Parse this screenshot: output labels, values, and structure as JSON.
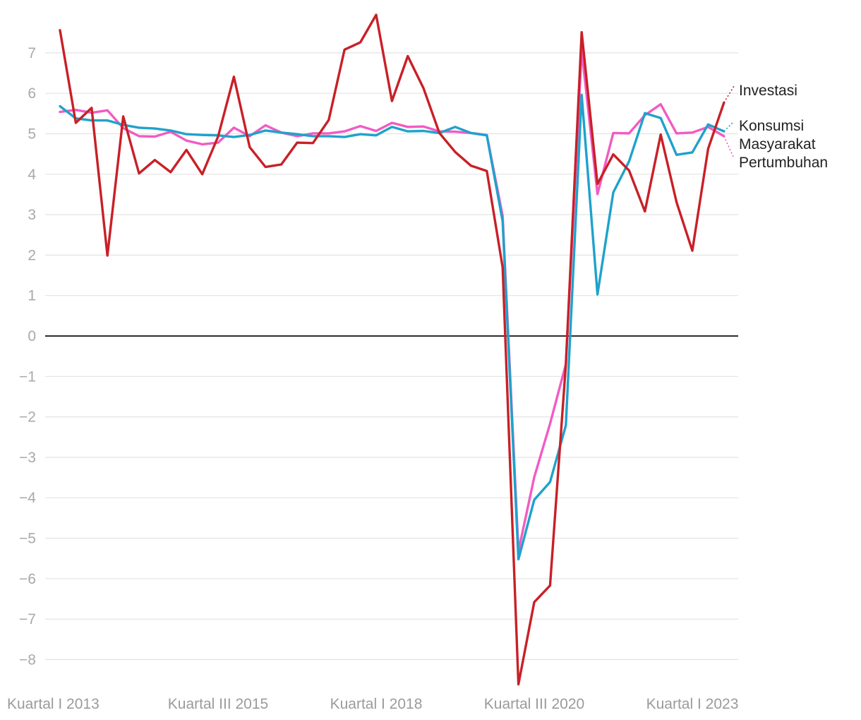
{
  "chart_data": {
    "type": "line",
    "title": "",
    "xlabel": "",
    "ylabel": "",
    "ylim": [
      -8.6,
      7.9
    ],
    "yticks": [
      -8,
      -7,
      -6,
      -5,
      -4,
      -3,
      -2,
      -1,
      0,
      1,
      2,
      3,
      4,
      5,
      6,
      7
    ],
    "ytick_labels": [
      "−8",
      "−7",
      "−6",
      "−5",
      "−4",
      "−3",
      "−2",
      "−1",
      "0",
      "1",
      "2",
      "3",
      "4",
      "5",
      "6",
      "7"
    ],
    "grid": true,
    "x_start_quarter": "Kuartal I 2013",
    "x_ticks": [
      {
        "index": 0,
        "label": "Kuartal I 2013"
      },
      {
        "index": 10,
        "label": "Kuartal III 2015"
      },
      {
        "index": 20,
        "label": "Kuartal I 2018"
      },
      {
        "index": 30,
        "label": "Kuartal III 2020"
      },
      {
        "index": 40,
        "label": "Kuartal I 2023"
      }
    ],
    "series": [
      {
        "name": "Pertumbuhan",
        "color": "#f25bc4",
        "label_lines": [
          "Pertumbuhan"
        ],
        "values": [
          5.54,
          5.59,
          5.52,
          5.58,
          5.14,
          4.94,
          4.93,
          5.05,
          4.83,
          4.74,
          4.78,
          5.15,
          4.94,
          5.21,
          5.03,
          4.94,
          5.01,
          5.01,
          5.06,
          5.19,
          5.07,
          5.27,
          5.17,
          5.18,
          5.06,
          5.05,
          5.02,
          4.97,
          2.97,
          -5.32,
          -3.49,
          -2.17,
          -0.7,
          7.07,
          3.51,
          5.02,
          5.01,
          5.46,
          5.73,
          5.01,
          5.03,
          5.17,
          4.94
        ]
      },
      {
        "name": "Konsumsi Masyarakat",
        "color": "#1fa2cb",
        "label_lines": [
          "Konsumsi",
          "Masyarakat"
        ],
        "values": [
          5.68,
          5.38,
          5.33,
          5.33,
          5.22,
          5.15,
          5.13,
          5.08,
          4.99,
          4.97,
          4.96,
          4.92,
          4.97,
          5.08,
          5.03,
          4.99,
          4.94,
          4.94,
          4.92,
          4.99,
          4.96,
          5.17,
          5.06,
          5.07,
          5.02,
          5.17,
          5.02,
          4.96,
          2.84,
          -5.52,
          -4.05,
          -3.61,
          -2.21,
          5.96,
          1.03,
          3.55,
          4.32,
          5.51,
          5.39,
          4.48,
          4.54,
          5.23,
          5.06
        ]
      },
      {
        "name": "Investasi",
        "color": "#c82027",
        "label_lines": [
          "Investasi"
        ],
        "values": [
          7.56,
          5.27,
          5.64,
          1.99,
          5.43,
          4.02,
          4.35,
          4.05,
          4.6,
          4.0,
          4.93,
          6.41,
          4.67,
          4.18,
          4.24,
          4.78,
          4.77,
          5.34,
          7.08,
          7.26,
          7.94,
          5.81,
          6.92,
          6.12,
          5.02,
          4.55,
          4.21,
          4.08,
          1.7,
          -8.61,
          -6.58,
          -6.17,
          -0.7,
          7.51,
          3.76,
          4.49,
          4.09,
          3.08,
          4.98,
          3.31,
          2.11,
          4.63,
          5.77
        ]
      }
    ]
  }
}
